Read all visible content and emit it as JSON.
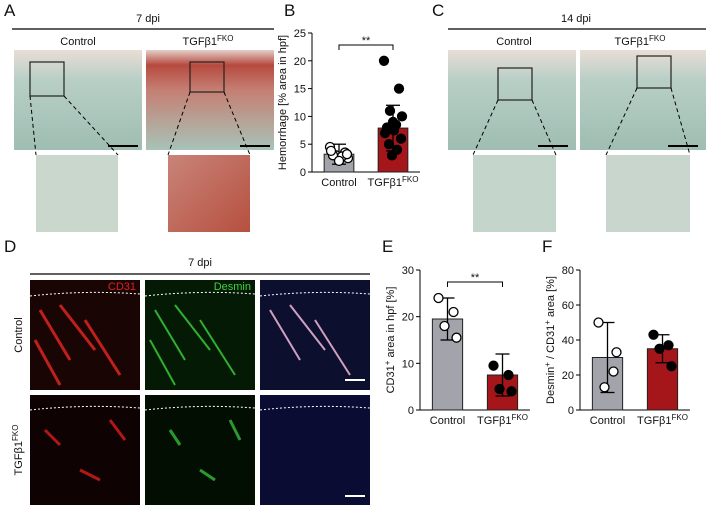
{
  "figure": {
    "letters": [
      "A",
      "B",
      "C",
      "D",
      "E",
      "F"
    ],
    "a_title": "7 dpi",
    "c_title": "14 dpi",
    "d_title": "7 dpi",
    "col_labels": [
      {
        "text": "Control"
      },
      {
        "text": "TGFβ1",
        "sup": "FKO"
      }
    ],
    "d_channels": [
      "CD31",
      "Desmin"
    ]
  },
  "chart_data": [
    {
      "type": "bar",
      "categories": [
        "Control",
        "TGFβ1"
      ],
      "category_sup": [
        null,
        "FKO"
      ],
      "ylabel": [
        {
          "text": "Hemorrhage [% area in hpf]"
        }
      ],
      "values": [
        3.2,
        7.9
      ],
      "errors": [
        1.8,
        4.1
      ],
      "points": [
        [
          4.5,
          3.5,
          3.0,
          2.5,
          3.0,
          2.8,
          2.0,
          3.8,
          3.2
        ],
        [
          20,
          15,
          11,
          10,
          8,
          8.5,
          9,
          7,
          6,
          5,
          4,
          3,
          7.5
        ]
      ],
      "colors": [
        "#a3a3ab",
        "#a4161a"
      ],
      "marker_filled": [
        false,
        true
      ],
      "ylim": [
        0,
        25
      ],
      "yticks": [
        0,
        5,
        10,
        15,
        20,
        25
      ],
      "significance": "**"
    },
    {
      "type": "bar",
      "categories": [
        "Control",
        "TGFβ1"
      ],
      "category_sup": [
        null,
        "FKO"
      ],
      "ylabel": [
        {
          "text": "CD31"
        },
        {
          "text": "+",
          "sup": true
        },
        {
          "text": " area in hpf [%]"
        }
      ],
      "values": [
        19.5,
        7.5
      ],
      "errors": [
        4.5,
        4.5
      ],
      "points": [
        [
          24,
          21,
          18,
          15.5
        ],
        [
          9.5,
          7.5,
          4.5,
          4
        ]
      ],
      "colors": [
        "#a3a3ab",
        "#a4161a"
      ],
      "marker_filled": [
        false,
        true
      ],
      "ylim": [
        0,
        30
      ],
      "yticks": [
        0,
        10,
        20,
        30
      ],
      "significance": "**"
    },
    {
      "type": "bar",
      "categories": [
        "Control",
        "TGFβ1"
      ],
      "category_sup": [
        null,
        "FKO"
      ],
      "ylabel": [
        {
          "text": "Desmin"
        },
        {
          "text": "+",
          "sup": true
        },
        {
          "text": " / CD31"
        },
        {
          "text": "+",
          "sup": true
        },
        {
          "text": " area [%]"
        }
      ],
      "values": [
        30,
        35
      ],
      "errors": [
        20,
        8
      ],
      "points": [
        [
          50,
          22,
          13,
          33
        ],
        [
          43,
          37,
          35,
          25
        ]
      ],
      "colors": [
        "#a3a3ab",
        "#a4161a"
      ],
      "marker_filled": [
        false,
        true
      ],
      "ylim": [
        0,
        80
      ],
      "yticks": [
        0,
        20,
        40,
        60,
        80
      ]
    }
  ]
}
